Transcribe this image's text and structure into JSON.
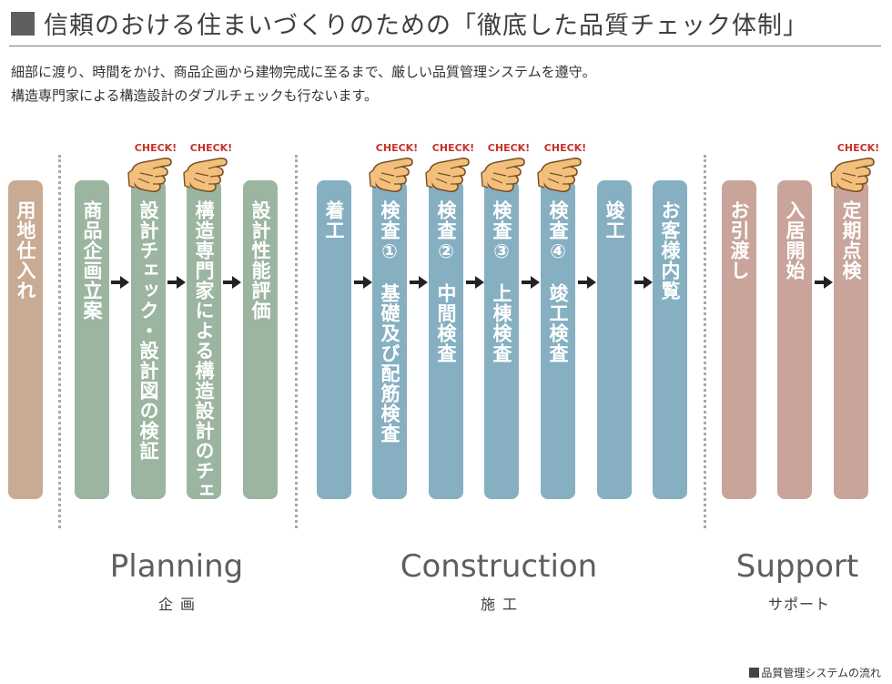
{
  "header": {
    "title": "信頼のおける住まいづくりのための「徹底した品質チェック体制」",
    "intro_line1": "細部に渡り、時間をかけ、商品企画から建物完成に至るまで、厳しい品質管理システムを遵守。",
    "intro_line2": "構造専門家による構造設計のダブルチェックも行ないます。"
  },
  "check_label": "CHECK!",
  "steps": [
    {
      "label": "用地仕入れ",
      "color": "#c9aa93"
    },
    {
      "label": "商品企画立案",
      "color": "#9cb5a1"
    },
    {
      "label": "設計チェック・設計図の検証",
      "color": "#9cb5a1",
      "check": true
    },
    {
      "label": "構造専門家による構造設計のチェック",
      "color": "#9cb5a1",
      "check": true
    },
    {
      "label": "設計性能評価",
      "color": "#9cb5a1"
    },
    {
      "label": "着工",
      "color": "#86b0c2"
    },
    {
      "label": "検査①",
      "sub": "基礎及び配筋検査",
      "color": "#86b0c2",
      "check": true
    },
    {
      "label": "検査②",
      "sub": "中間検査",
      "color": "#86b0c2",
      "check": true
    },
    {
      "label": "検査③",
      "sub": "上棟検査",
      "color": "#86b0c2",
      "check": true
    },
    {
      "label": "検査④",
      "sub": "竣工検査",
      "color": "#86b0c2",
      "check": true
    },
    {
      "label": "竣工",
      "color": "#86b0c2"
    },
    {
      "label": "お客様内覧",
      "color": "#86b0c2"
    },
    {
      "label": "お引渡し",
      "color": "#c9a49a"
    },
    {
      "label": "入居開始",
      "color": "#c9a49a"
    },
    {
      "label": "定期点検",
      "color": "#c9a49a",
      "check": true
    }
  ],
  "sections": [
    {
      "title": "Planning",
      "subtitle": "企画"
    },
    {
      "title": "Construction",
      "subtitle": "施工"
    },
    {
      "title": "Support",
      "subtitle": "サポート"
    }
  ],
  "footnote": "品質管理システムの流れ"
}
